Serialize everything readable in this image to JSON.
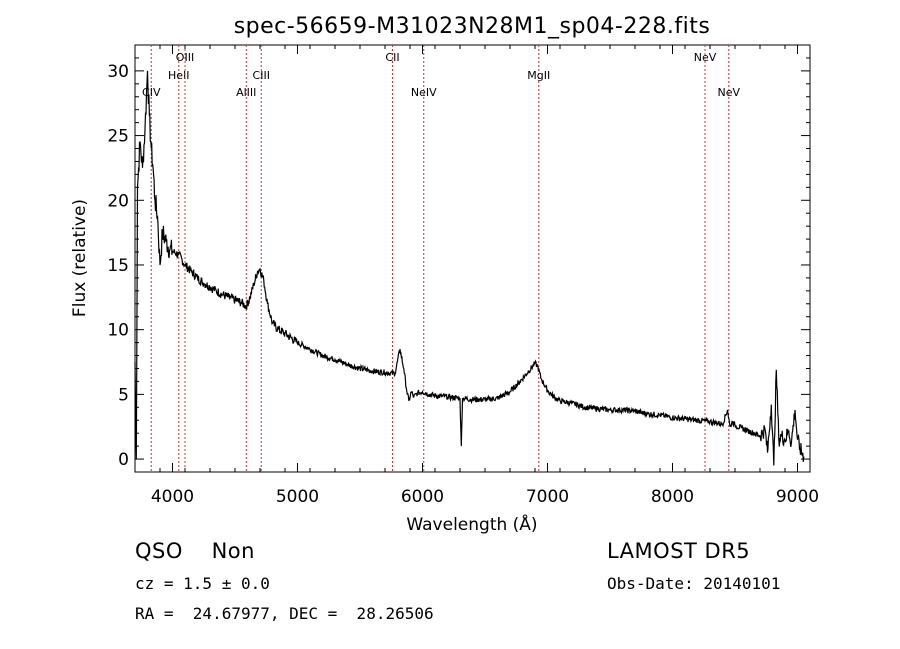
{
  "chart_data": {
    "type": "line",
    "title": "spec-56659-M31023N28M1_sp04-228.fits",
    "xlabel": "Wavelength (Å)",
    "ylabel": "Flux (relative)",
    "xlim": [
      3700,
      9100
    ],
    "ylim": [
      -1,
      32
    ],
    "xticks": [
      4000,
      5000,
      6000,
      7000,
      8000,
      9000
    ],
    "yticks": [
      0,
      5,
      10,
      15,
      20,
      25,
      30
    ],
    "grid": false,
    "x": [
      3700,
      3710,
      3720,
      3740,
      3760,
      3780,
      3800,
      3815,
      3830,
      3845,
      3860,
      3880,
      3900,
      3920,
      3950,
      3980,
      4010,
      4050,
      4100,
      4150,
      4200,
      4250,
      4300,
      4350,
      4400,
      4450,
      4500,
      4550,
      4590,
      4620,
      4650,
      4680,
      4700,
      4730,
      4760,
      4800,
      4850,
      4900,
      5000,
      5100,
      5200,
      5300,
      5400,
      5500,
      5600,
      5700,
      5780,
      5820,
      5850,
      5870,
      5890,
      5910,
      5930,
      5960,
      6000,
      6050,
      6100,
      6200,
      6300,
      6310,
      6320,
      6400,
      6500,
      6600,
      6700,
      6780,
      6850,
      6900,
      6920,
      6950,
      7000,
      7050,
      7100,
      7200,
      7300,
      7400,
      7500,
      7600,
      7700,
      7800,
      7900,
      8000,
      8100,
      8200,
      8300,
      8400,
      8440,
      8460,
      8480,
      8500,
      8550,
      8600,
      8650,
      8700,
      8740,
      8760,
      8790,
      8810,
      8830,
      8850,
      8870,
      8900,
      8930,
      8950,
      8980,
      9000,
      9020,
      9050
    ],
    "y": [
      7.5,
      0,
      21,
      24.5,
      22.5,
      25.5,
      30,
      26.5,
      24,
      22.5,
      20,
      18.8,
      15,
      17.5,
      16.8,
      16.2,
      16,
      15.8,
      15,
      14.5,
      14,
      13.6,
      13.3,
      13,
      12.7,
      12.5,
      12.3,
      12.1,
      11.8,
      12.5,
      13.5,
      14.5,
      14.7,
      13.8,
      12,
      10.5,
      10,
      9.7,
      9,
      8.5,
      8,
      7.7,
      7.3,
      7,
      6.8,
      6.7,
      6.6,
      8.5,
      7,
      5.5,
      4.5,
      5.2,
      4.8,
      5.1,
      5.2,
      5.0,
      4.9,
      4.8,
      4.7,
      1,
      4.7,
      4.6,
      4.6,
      4.7,
      5.2,
      6,
      6.8,
      7.4,
      7.2,
      6.2,
      5.3,
      4.8,
      4.5,
      4.3,
      4.0,
      3.9,
      3.8,
      3.8,
      3.7,
      3.5,
      3.4,
      3.2,
      3.1,
      3.0,
      2.9,
      2.7,
      3.8,
      2.5,
      2.9,
      2.6,
      2.4,
      2.2,
      2.0,
      1.8,
      2.3,
      0.5,
      4.2,
      -0.5,
      6.9,
      1.5,
      1.8,
      1.5,
      2.2,
      1.2,
      3.8,
      1.5,
      0.8,
      0.2
    ],
    "lines": [
      {
        "name": "CIV",
        "x": 3830,
        "row": 3
      },
      {
        "name": "HeII",
        "x": 4050,
        "row": 2
      },
      {
        "name": "OIII",
        "x": 4100,
        "row": 1
      },
      {
        "name": "AlIII",
        "x": 4590,
        "row": 3
      },
      {
        "name": "CIII",
        "x": 4710,
        "row": 2
      },
      {
        "name": "CII",
        "x": 5760,
        "row": 1
      },
      {
        "name": "NeIV",
        "x": 6010,
        "row": 3
      },
      {
        "name": "MgII",
        "x": 6930,
        "row": 2
      },
      {
        "name": "NeV",
        "x": 8260,
        "row": 1
      },
      {
        "name": "NeV",
        "x": 8450,
        "row": 3
      }
    ]
  },
  "footer": {
    "class_label": "QSO    Non",
    "survey": "LAMOST DR5",
    "cz": "cz = 1.5 ± 0.0",
    "obs_date": "Obs-Date: 20140101",
    "coords": "RA =  24.67977, DEC =  28.26506"
  }
}
